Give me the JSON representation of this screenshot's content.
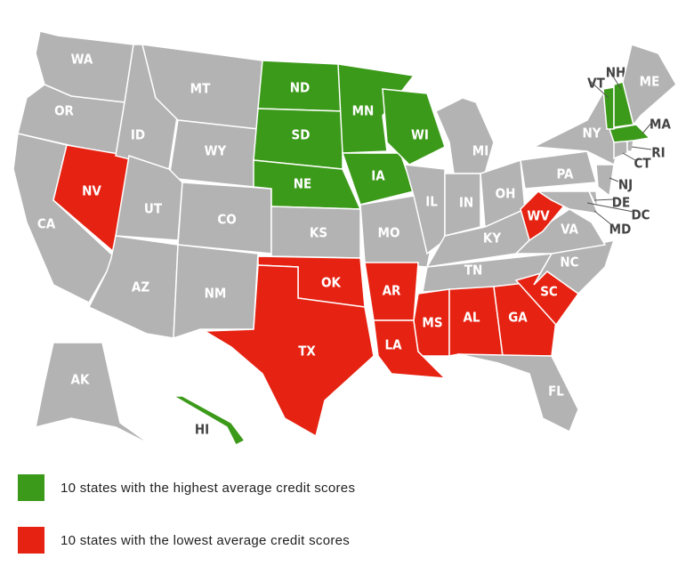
{
  "colors": {
    "high": "#3c9a1a",
    "low": "#e62212",
    "none": "#b3b3b3"
  },
  "states": [
    {
      "label": "WA",
      "group": "none"
    },
    {
      "label": "OR",
      "group": "none"
    },
    {
      "label": "CA",
      "group": "none"
    },
    {
      "label": "NV",
      "group": "low"
    },
    {
      "label": "ID",
      "group": "none"
    },
    {
      "label": "MT",
      "group": "none"
    },
    {
      "label": "WY",
      "group": "none"
    },
    {
      "label": "UT",
      "group": "none"
    },
    {
      "label": "CO",
      "group": "none"
    },
    {
      "label": "AZ",
      "group": "none"
    },
    {
      "label": "NM",
      "group": "none"
    },
    {
      "label": "ND",
      "group": "high"
    },
    {
      "label": "SD",
      "group": "high"
    },
    {
      "label": "NE",
      "group": "high"
    },
    {
      "label": "KS",
      "group": "none"
    },
    {
      "label": "OK",
      "group": "low"
    },
    {
      "label": "TX",
      "group": "low"
    },
    {
      "label": "MN",
      "group": "high"
    },
    {
      "label": "IA",
      "group": "high"
    },
    {
      "label": "MO",
      "group": "none"
    },
    {
      "label": "AR",
      "group": "low"
    },
    {
      "label": "LA",
      "group": "low"
    },
    {
      "label": "WI",
      "group": "high"
    },
    {
      "label": "IL",
      "group": "none"
    },
    {
      "label": "MI",
      "group": "none"
    },
    {
      "label": "IN",
      "group": "none"
    },
    {
      "label": "OH",
      "group": "none"
    },
    {
      "label": "KY",
      "group": "none"
    },
    {
      "label": "TN",
      "group": "none"
    },
    {
      "label": "MS",
      "group": "low"
    },
    {
      "label": "AL",
      "group": "low"
    },
    {
      "label": "GA",
      "group": "low"
    },
    {
      "label": "FL",
      "group": "none"
    },
    {
      "label": "SC",
      "group": "low"
    },
    {
      "label": "NC",
      "group": "none"
    },
    {
      "label": "VA",
      "group": "none"
    },
    {
      "label": "WV",
      "group": "low"
    },
    {
      "label": "PA",
      "group": "none"
    },
    {
      "label": "NY",
      "group": "none"
    },
    {
      "label": "NJ",
      "group": "none"
    },
    {
      "label": "DE",
      "group": "none"
    },
    {
      "label": "MD",
      "group": "none"
    },
    {
      "label": "CT",
      "group": "none"
    },
    {
      "label": "RI",
      "group": "none"
    },
    {
      "label": "MA",
      "group": "high"
    },
    {
      "label": "VT",
      "group": "high"
    },
    {
      "label": "NH",
      "group": "high"
    },
    {
      "label": "ME",
      "group": "none"
    },
    {
      "label": "AK",
      "group": "none"
    },
    {
      "label": "HI",
      "group": "high"
    },
    {
      "label": "DC",
      "group": "none"
    }
  ],
  "legend": [
    {
      "group": "high",
      "label": "10 states with the highest average credit scores"
    },
    {
      "group": "low",
      "label": "10 states with the lowest average credit scores"
    }
  ]
}
